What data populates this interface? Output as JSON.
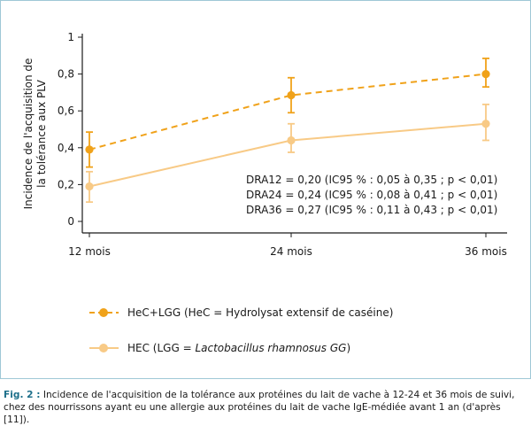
{
  "colors": {
    "series_dark": "#f0a21a",
    "series_light": "#f8ca86",
    "axis": "#1a1a1a",
    "frame": "#9fc8d6",
    "caption_label": "#1d6f8a"
  },
  "chart_data": {
    "type": "line",
    "categories": [
      "12 mois",
      "24 mois",
      "36 mois"
    ],
    "ylabel": "Incidence de l'acquisition de la tolérance aux PLV",
    "ylabel_lines": [
      "Incidence de l'acquisition de",
      "la tolérance aux PLV"
    ],
    "ylim": [
      0,
      1
    ],
    "yticks": [
      "0",
      "0,2",
      "0,4",
      "0,6",
      "0,8",
      "1"
    ],
    "ytick_values": [
      0,
      0.2,
      0.4,
      0.6,
      0.8,
      1
    ],
    "grid": false,
    "legend_position": "bottom-left",
    "series": [
      {
        "name": "HeC+LGG (HeC = Hydrolysat extensif de caséine)",
        "line_style": "dashed",
        "color_key": "series_dark",
        "values": [
          0.39,
          0.685,
          0.8
        ],
        "err_low": [
          0.295,
          0.59,
          0.73
        ],
        "err_high": [
          0.485,
          0.78,
          0.885
        ]
      },
      {
        "name_prefix": "HEC (LGG = ",
        "name_italic": "Lactobacillus rhamnosus GG",
        "name_suffix": ")",
        "line_style": "solid",
        "color_key": "series_light",
        "values": [
          0.19,
          0.44,
          0.53
        ],
        "err_low": [
          0.105,
          0.375,
          0.44
        ],
        "err_high": [
          0.27,
          0.53,
          0.635
        ]
      }
    ],
    "annotations": [
      "DRA12 = 0,20 (IC95 % : 0,05 à 0,35 ; p < 0,01)",
      "DRA24 = 0,24 (IC95 % : 0,08 à 0,41 ; p < 0,01)",
      "DRA36 = 0,27 (IC95 % : 0,11 à 0,43 ; p < 0,01)"
    ]
  },
  "caption": {
    "label": "Fig. 2 :",
    "text": "Incidence de l'acquisition de la tolérance aux protéines du lait de vache à 12-24 et 36 mois de suivi, chez des nourrissons ayant eu une allergie aux protéines du lait de vache IgE-médiée avant 1 an (d'après [11])."
  }
}
